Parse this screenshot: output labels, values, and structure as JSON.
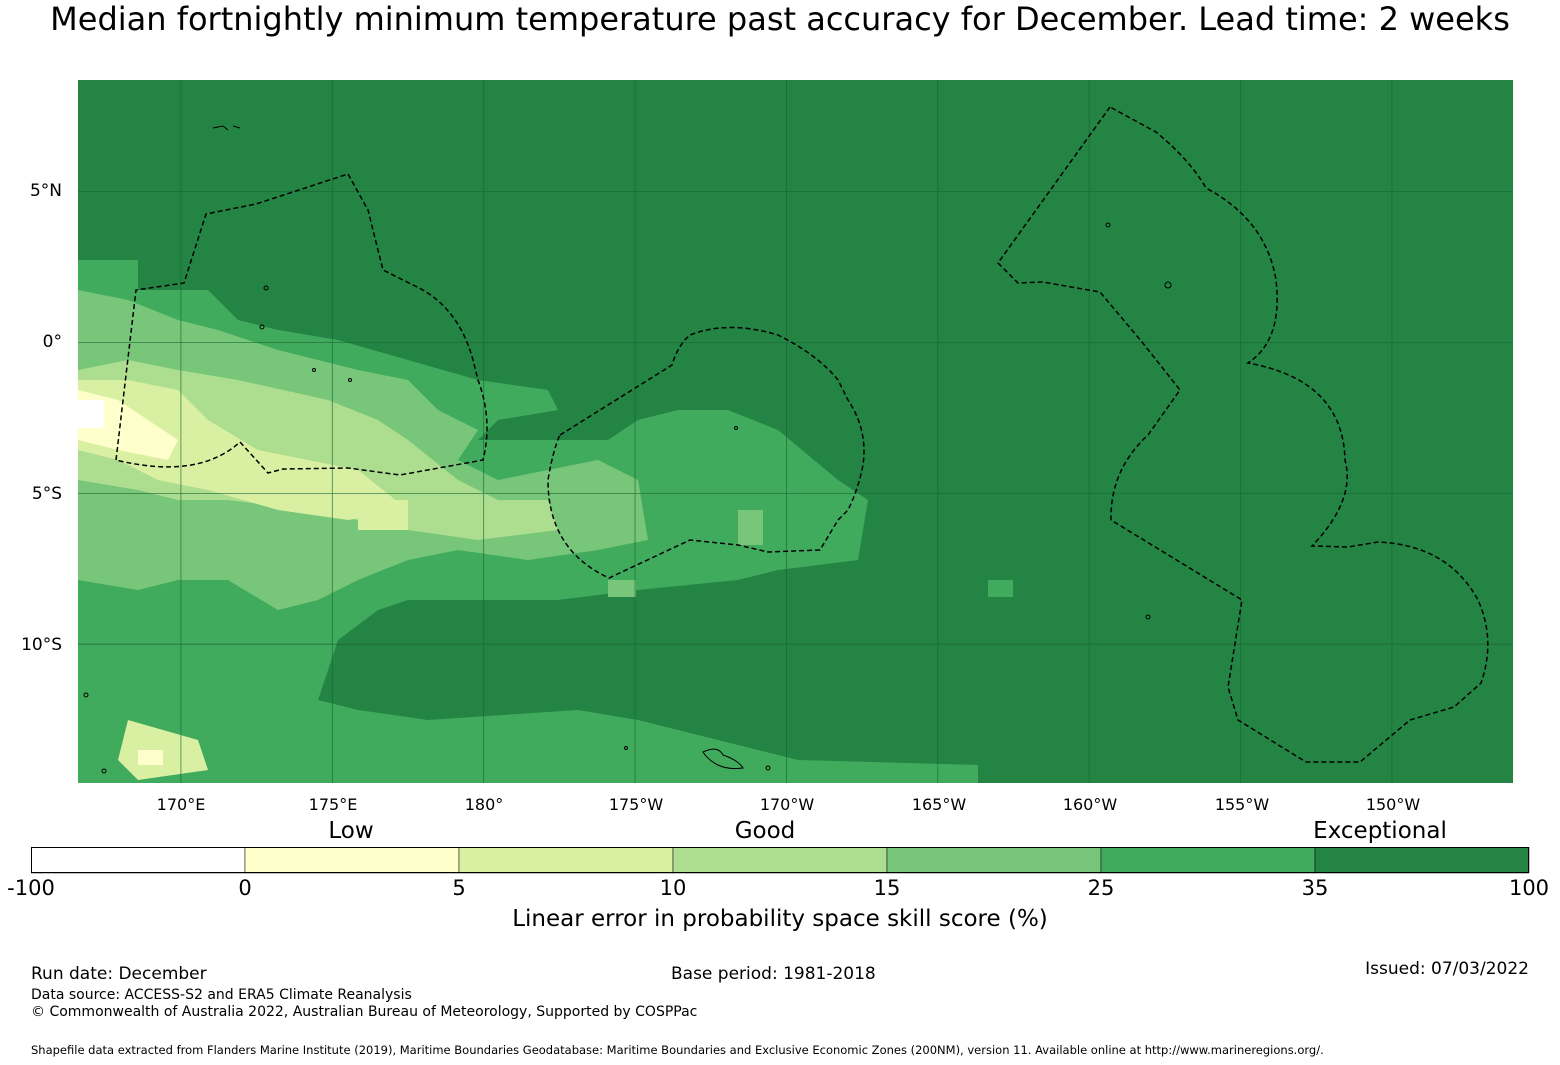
{
  "title": "Median fortnightly minimum temperature past accuracy for December. Lead time: 2 weeks",
  "map": {
    "lat_labels": [
      "5°N",
      "0°",
      "5°S",
      "10°S"
    ],
    "lon_labels": [
      "170°E",
      "175°E",
      "180°",
      "175°W",
      "170°W",
      "165°W",
      "160°W",
      "155°W",
      "150°W"
    ],
    "lon_min": 166.6,
    "lon_max": 214.0,
    "lat_max": 8.7,
    "lat_min": -14.6,
    "grid_lons": [
      170,
      175,
      180,
      185,
      190,
      195,
      200,
      205,
      210
    ],
    "grid_lats": [
      5,
      0,
      -5,
      -10
    ]
  },
  "legend": {
    "categories": [
      "Low",
      "Good",
      "Exceptional"
    ],
    "ticks": [
      "-100",
      "0",
      "5",
      "10",
      "15",
      "25",
      "35",
      "100"
    ],
    "colors": [
      "#ffffff",
      "#ffffcc",
      "#d9f0a3",
      "#addd8e",
      "#78c679",
      "#41ab5d",
      "#238443"
    ],
    "label": "Linear error in probability space skill score (%)"
  },
  "footer": {
    "run_date": "Run date: December",
    "base_period": "Base period: 1981-2018",
    "issued": "Issued: 07/03/2022",
    "data_source": "Data source: ACCESS-S2 and ERA5 Climate Reanalysis",
    "copyright": "© Commonwealth of Australia 2022, Australian Bureau of Meteorology, Supported by COSPPac",
    "shapefile": "Shapefile data extracted from Flanders Marine Institute (2019), Maritime Boundaries Geodatabase: Maritime Boundaries and Exclusive Economic Zones (200NM), version 11. Available online at http://www.marineregions.org/."
  }
}
